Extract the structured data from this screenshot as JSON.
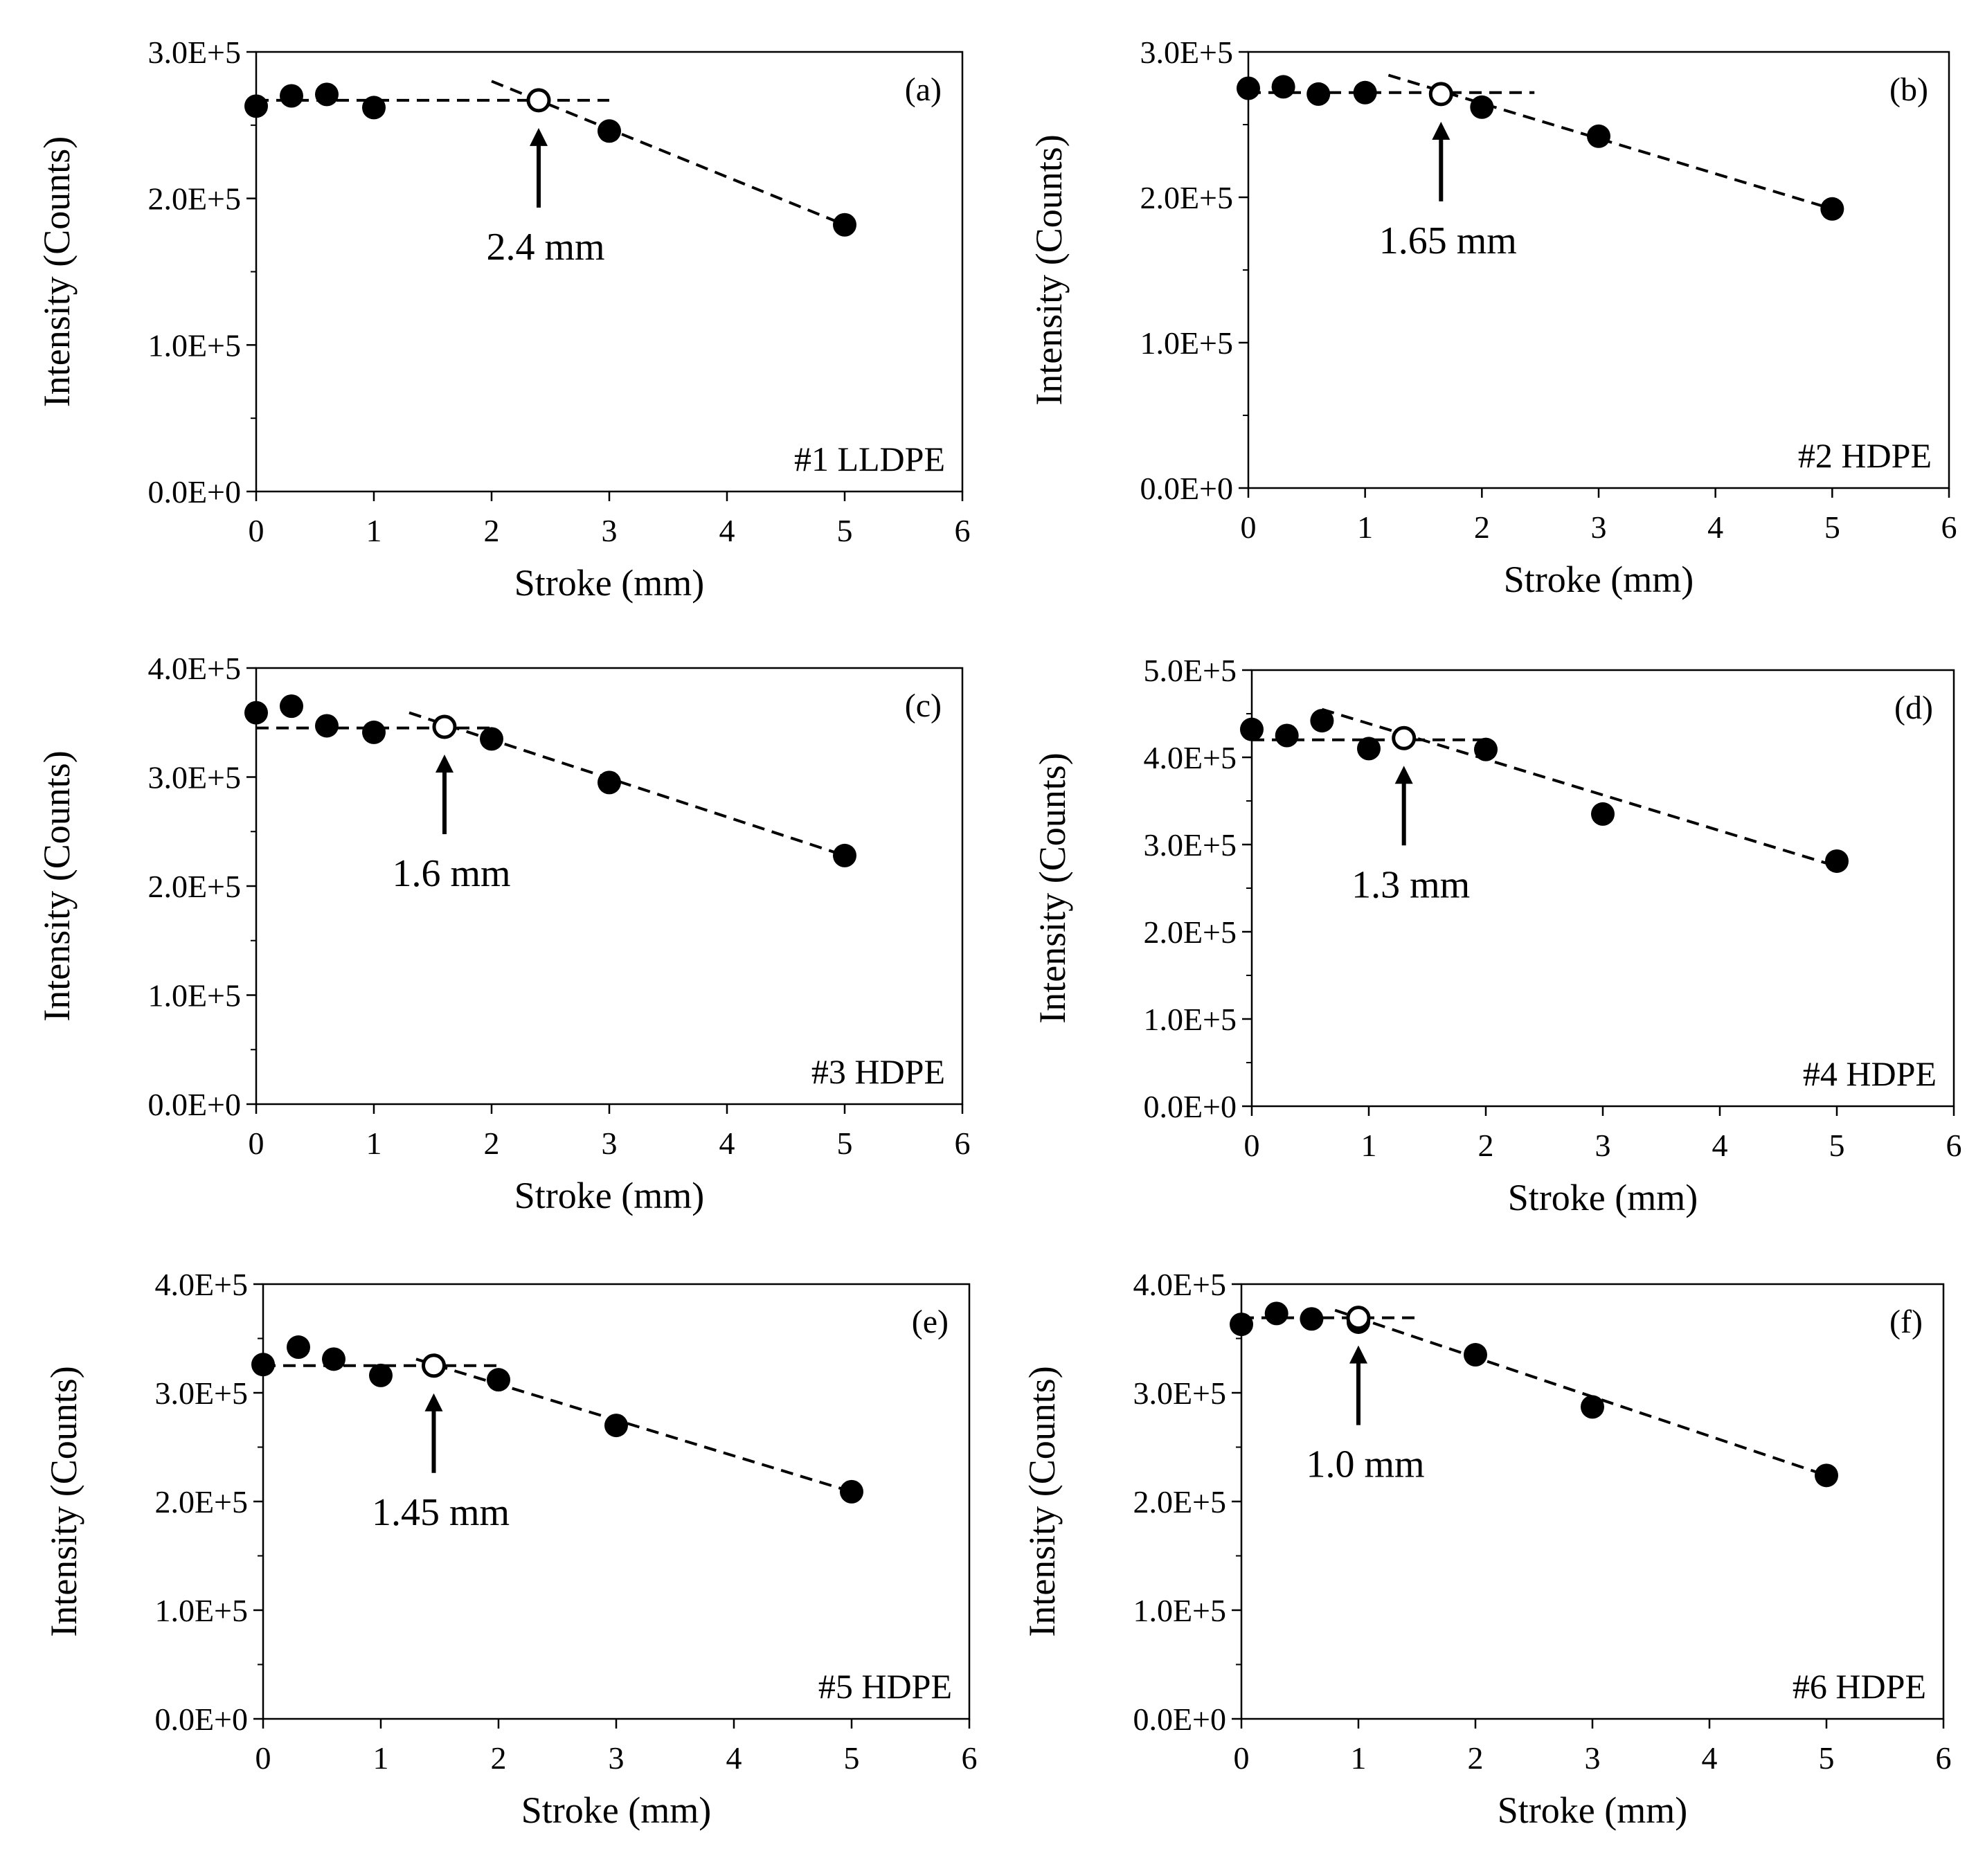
{
  "chart_data": [
    {
      "type": "scatter",
      "panel_label": "(a)",
      "sample_label": "#1 LLDPE",
      "xlabel": "Stroke (mm)",
      "ylabel": "Intensity (Counts)",
      "xlim": [
        0,
        6
      ],
      "ylim": [
        0,
        300000
      ],
      "xticks": [
        "0",
        "1",
        "2",
        "3",
        "4",
        "5",
        "6"
      ],
      "yticks": [
        "0.0E+0",
        "1.0E+5",
        "2.0E+5",
        "3.0E+5"
      ],
      "points": [
        [
          0,
          263000
        ],
        [
          0.3,
          270000
        ],
        [
          0.6,
          271000
        ],
        [
          1,
          262000
        ],
        [
          3,
          246000
        ],
        [
          5,
          182000
        ]
      ],
      "transition_point": [
        2.4,
        267000
      ],
      "annotation": "2.4 mm",
      "fit_lines": [
        [
          [
            0,
            267000
          ],
          [
            3,
            267000
          ]
        ],
        [
          [
            2,
            280000
          ],
          [
            5,
            182000
          ]
        ]
      ]
    },
    {
      "type": "scatter",
      "panel_label": "(b)",
      "sample_label": "#2 HDPE",
      "xlabel": "Stroke (mm)",
      "ylabel": "Intensity (Counts)",
      "xlim": [
        0,
        6
      ],
      "ylim": [
        0,
        300000
      ],
      "xticks": [
        "0",
        "1",
        "2",
        "3",
        "4",
        "5",
        "6"
      ],
      "yticks": [
        "0.0E+0",
        "1.0E+5",
        "2.0E+5",
        "3.0E+5"
      ],
      "points": [
        [
          0,
          275000
        ],
        [
          0.3,
          276000
        ],
        [
          0.6,
          271000
        ],
        [
          1,
          272000
        ],
        [
          2,
          262000
        ],
        [
          3,
          242000
        ],
        [
          5,
          192000
        ]
      ],
      "transition_point": [
        1.65,
        271000
      ],
      "annotation": "1.65 mm",
      "fit_lines": [
        [
          [
            0,
            272000
          ],
          [
            2.45,
            272000
          ]
        ],
        [
          [
            1.2,
            284000
          ],
          [
            5,
            192000
          ]
        ]
      ]
    },
    {
      "type": "scatter",
      "panel_label": "(c)",
      "sample_label": "#3 HDPE",
      "xlabel": "Stroke (mm)",
      "ylabel": "Intensity (Counts)",
      "xlim": [
        0,
        6
      ],
      "ylim": [
        0,
        400000
      ],
      "xticks": [
        "0",
        "1",
        "2",
        "3",
        "4",
        "5",
        "6"
      ],
      "yticks": [
        "0.0E+0",
        "1.0E+5",
        "2.0E+5",
        "3.0E+5",
        "4.0E+5"
      ],
      "points": [
        [
          0,
          359000
        ],
        [
          0.3,
          365000
        ],
        [
          0.6,
          347000
        ],
        [
          1,
          341000
        ],
        [
          2,
          335000
        ],
        [
          3,
          295000
        ],
        [
          5,
          228000
        ]
      ],
      "transition_point": [
        1.6,
        346000
      ],
      "annotation": "1.6 mm",
      "fit_lines": [
        [
          [
            0,
            345000
          ],
          [
            2,
            345000
          ]
        ],
        [
          [
            1.3,
            359000
          ],
          [
            5,
            228000
          ]
        ]
      ]
    },
    {
      "type": "scatter",
      "panel_label": "(d)",
      "sample_label": "#4 HDPE",
      "xlabel": "Stroke (mm)",
      "ylabel": "Intensity (Counts)",
      "xlim": [
        0,
        6
      ],
      "ylim": [
        0,
        500000
      ],
      "xticks": [
        "0",
        "1",
        "2",
        "3",
        "4",
        "5",
        "6"
      ],
      "yticks": [
        "0.0E+0",
        "1.0E+5",
        "2.0E+5",
        "3.0E+5",
        "4.0E+5",
        "5.0E+5"
      ],
      "points": [
        [
          0,
          432000
        ],
        [
          0.3,
          425000
        ],
        [
          0.6,
          442000
        ],
        [
          1,
          410000
        ],
        [
          2,
          409000
        ],
        [
          3,
          335000
        ],
        [
          5,
          281000
        ]
      ],
      "transition_point": [
        1.3,
        422000
      ],
      "annotation": "1.3 mm",
      "fit_lines": [
        [
          [
            0,
            420000
          ],
          [
            2,
            420000
          ]
        ],
        [
          [
            0.6,
            455000
          ],
          [
            5,
            275000
          ]
        ]
      ]
    },
    {
      "type": "scatter",
      "panel_label": "(e)",
      "sample_label": "#5 HDPE",
      "xlabel": "Stroke (mm)",
      "ylabel": "Intensity (Counts)",
      "xlim": [
        0,
        6
      ],
      "ylim": [
        0,
        400000
      ],
      "xticks": [
        "0",
        "1",
        "2",
        "3",
        "4",
        "5",
        "6"
      ],
      "yticks": [
        "0.0E+0",
        "1.0E+5",
        "2.0E+5",
        "3.0E+5",
        "4.0E+5"
      ],
      "points": [
        [
          0,
          326000
        ],
        [
          0.3,
          342000
        ],
        [
          0.6,
          331000
        ],
        [
          1,
          316000
        ],
        [
          2,
          312000
        ],
        [
          3,
          270000
        ],
        [
          5,
          209000
        ]
      ],
      "transition_point": [
        1.45,
        325000
      ],
      "annotation": "1.45 mm",
      "fit_lines": [
        [
          [
            0,
            325000
          ],
          [
            2,
            325000
          ]
        ],
        [
          [
            1.3,
            331000
          ],
          [
            5,
            209000
          ]
        ]
      ]
    },
    {
      "type": "scatter",
      "panel_label": "(f)",
      "sample_label": "#6 HDPE",
      "xlabel": "Stroke (mm)",
      "ylabel": "Intensity (Counts)",
      "xlim": [
        0,
        6
      ],
      "ylim": [
        0,
        400000
      ],
      "xticks": [
        "0",
        "1",
        "2",
        "3",
        "4",
        "5",
        "6"
      ],
      "yticks": [
        "0.0E+0",
        "1.0E+5",
        "2.0E+5",
        "3.0E+5",
        "4.0E+5"
      ],
      "points": [
        [
          0,
          363000
        ],
        [
          0.3,
          373000
        ],
        [
          0.6,
          368000
        ],
        [
          1,
          365000
        ],
        [
          2,
          335000
        ],
        [
          3,
          287000
        ],
        [
          5,
          224000
        ]
      ],
      "transition_point": [
        1.0,
        369000
      ],
      "annotation": "1.0 mm",
      "fit_lines": [
        [
          [
            0,
            369000
          ],
          [
            1.5,
            369000
          ]
        ],
        [
          [
            0.8,
            376000
          ],
          [
            5,
            224000
          ]
        ]
      ]
    }
  ]
}
